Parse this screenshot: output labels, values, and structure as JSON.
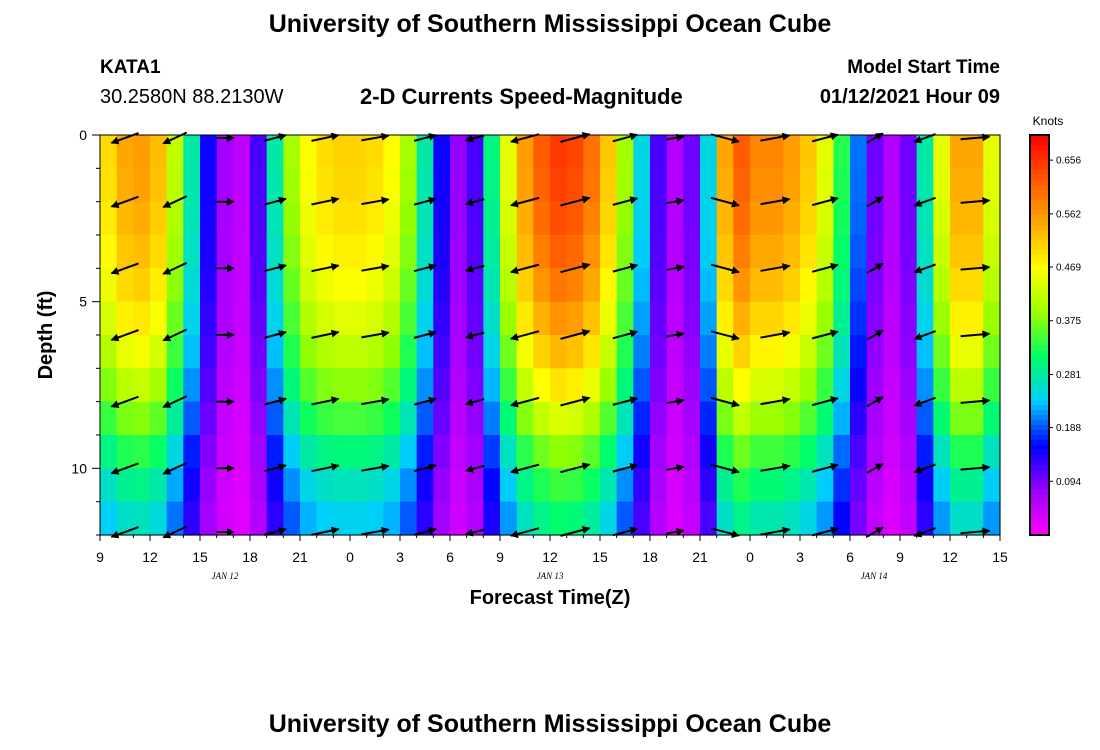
{
  "header": {
    "title": "University of Southern Mississippi Ocean Cube",
    "station_id": "KATA1",
    "station_location": "30.2580N 88.2130W",
    "plot_title": "2-D Currents Speed-Magnitude",
    "model_start_label": "Model Start Time",
    "model_start_value": "01/12/2021 Hour 09"
  },
  "footer": {
    "title": "University of Southern Mississippi Ocean Cube"
  },
  "chart_data": {
    "type": "heatmap",
    "title": "2-D Currents Speed-Magnitude",
    "xlabel": "Forecast Time(Z)",
    "ylabel": "Depth (ft)",
    "x_start": "2021-01-12 09Z",
    "x_step_hours": 1,
    "x_hours": 54,
    "x_tick_labels": [
      "9",
      "12",
      "15",
      "18",
      "21",
      "0",
      "3",
      "6",
      "9",
      "12",
      "15",
      "18",
      "21",
      "0",
      "3",
      "6",
      "9",
      "12",
      "15"
    ],
    "date_labels": [
      "JAN 12",
      "JAN 13",
      "JAN 14"
    ],
    "y_range": [
      0,
      12
    ],
    "y_ticks": [
      0,
      5,
      10
    ],
    "y_reversed": true,
    "colorbar": {
      "label": "Knots",
      "range": [
        0,
        0.7
      ],
      "tick_labels": [
        "0.656",
        "0.562",
        "0.469",
        "0.375",
        "0.281",
        "0.188",
        "0.094"
      ],
      "tick_values": [
        0.656,
        0.562,
        0.469,
        0.375,
        0.281,
        0.188,
        0.094
      ],
      "colors": [
        "#ff00ff",
        "#9900ff",
        "#0000ff",
        "#00ccff",
        "#00ff66",
        "#99ff00",
        "#ffff00",
        "#ffaa00",
        "#ff5500",
        "#ff0000"
      ]
    },
    "depth_levels": [
      0,
      2,
      4,
      6,
      8,
      10,
      12
    ],
    "surface_speed_by_hour": [
      0.5,
      0.55,
      0.56,
      0.53,
      0.42,
      0.28,
      0.15,
      0.07,
      0.05,
      0.12,
      0.28,
      0.4,
      0.47,
      0.5,
      0.51,
      0.51,
      0.5,
      0.47,
      0.4,
      0.28,
      0.15,
      0.08,
      0.12,
      0.3,
      0.45,
      0.56,
      0.62,
      0.65,
      0.64,
      0.6,
      0.52,
      0.4,
      0.25,
      0.12,
      0.06,
      0.1,
      0.25,
      0.55,
      0.62,
      0.58,
      0.58,
      0.56,
      0.52,
      0.45,
      0.33,
      0.2,
      0.1,
      0.06,
      0.1,
      0.28,
      0.45,
      0.55,
      0.55,
      0.45,
      0.3
    ],
    "depth_decay": [
      1.0,
      0.98,
      0.93,
      0.85,
      0.72,
      0.55,
      0.45
    ],
    "vector_hours": [
      1,
      4,
      7,
      10,
      13,
      16,
      19,
      22,
      25,
      28,
      31,
      34,
      37,
      40,
      43,
      46,
      49,
      52
    ],
    "vector_angles_deg": [
      200,
      205,
      0,
      15,
      12,
      10,
      15,
      195,
      195,
      15,
      15,
      10,
      345,
      10,
      15,
      30,
      200,
      5
    ],
    "grid": false
  }
}
